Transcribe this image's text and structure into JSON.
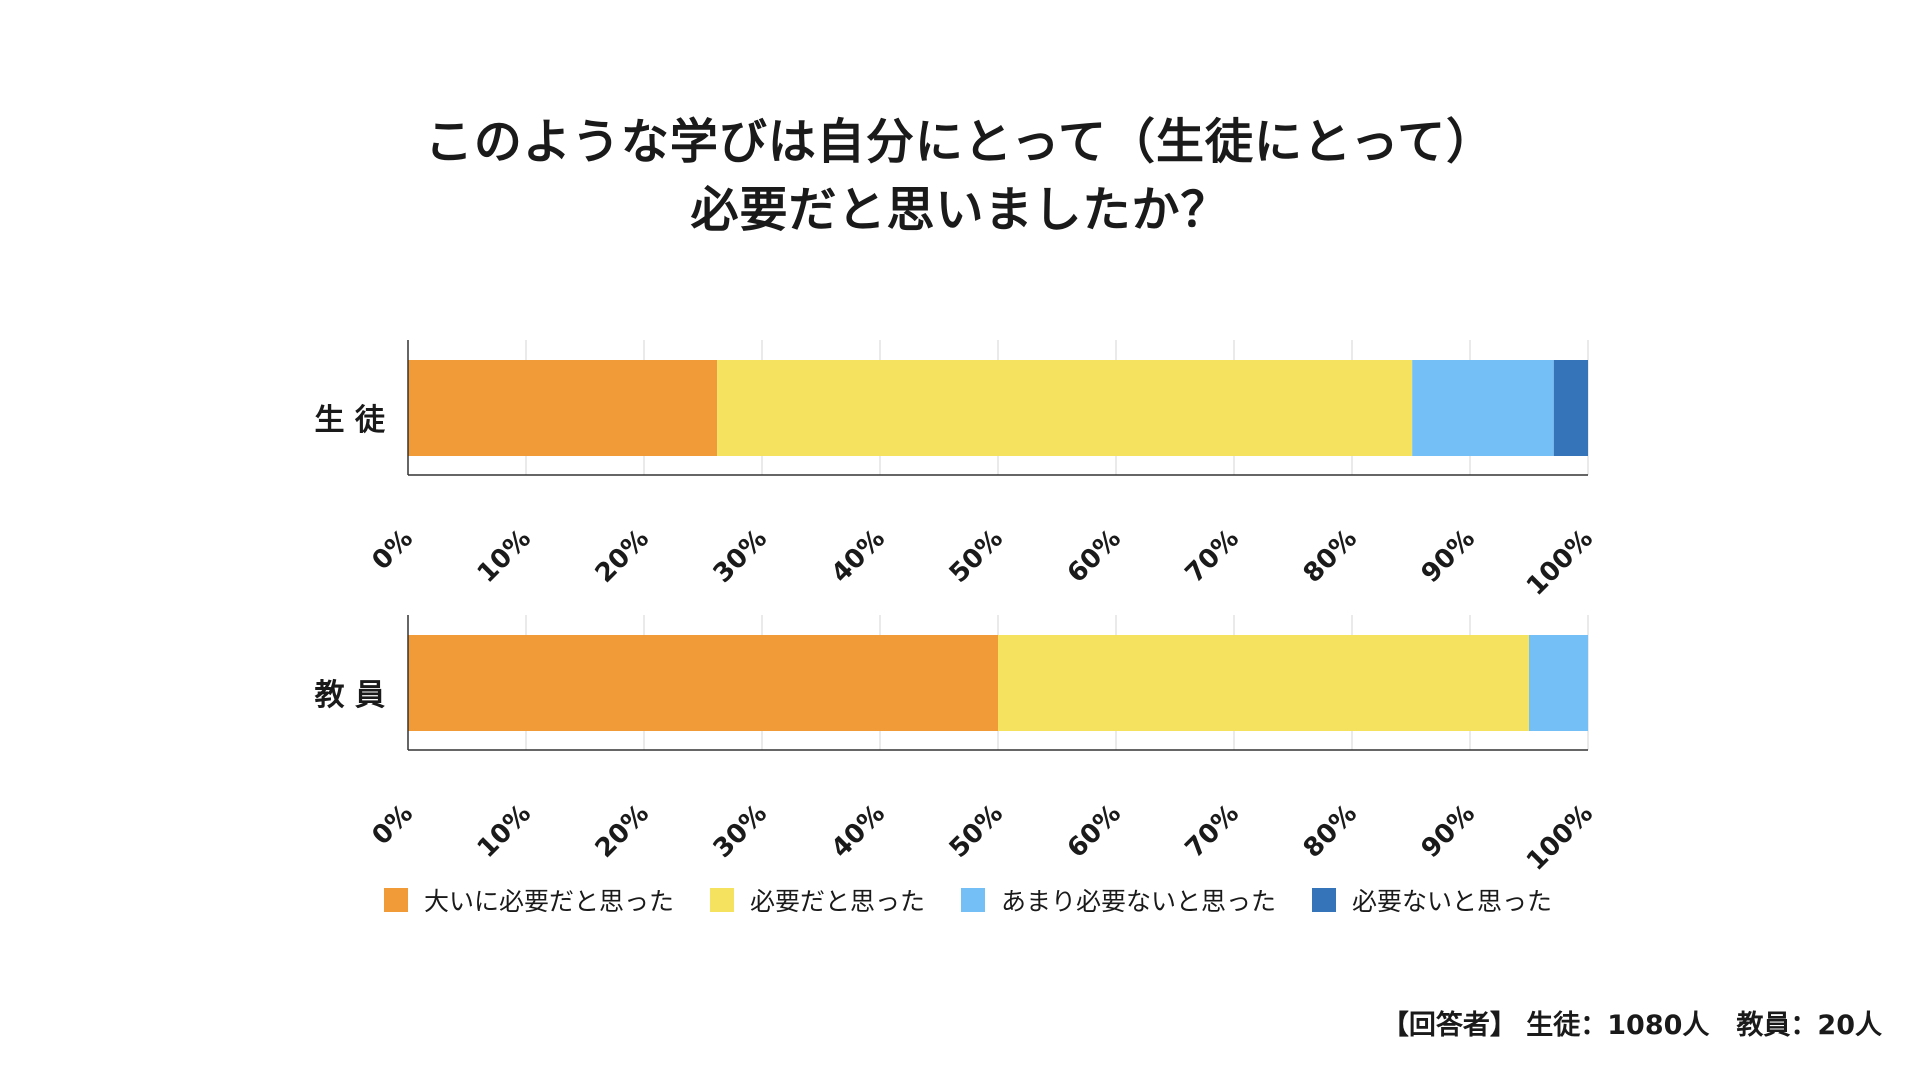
{
  "title_line1": "このような学びは自分にとって（生徒にとって）",
  "title_line2": "必要だと思いましたか？",
  "footnote": "【回答者】 生徒：1080人　教員：20人",
  "chart_data": {
    "type": "bar",
    "orientation": "horizontal",
    "stacked": true,
    "title": "このような学びは自分にとって（生徒にとって）必要だと思いましたか？",
    "categories": [
      "生 徒",
      "教 員"
    ],
    "xlim": [
      0,
      100
    ],
    "ticks": [
      "0%",
      "10%",
      "20%",
      "30%",
      "40%",
      "50%",
      "60%",
      "70%",
      "80%",
      "90%",
      "100%"
    ],
    "series": [
      {
        "name": "大いに必要だと思った",
        "color": "#F09A38",
        "values": [
          26.2,
          50.0
        ]
      },
      {
        "name": "必要だと思った",
        "color": "#F5E35F",
        "values": [
          58.9,
          45.0
        ]
      },
      {
        "name": "あまり必要ないと思った",
        "color": "#75BFF7",
        "values": [
          12.0,
          5.0
        ]
      },
      {
        "name": "必要ないと思った",
        "color": "#3574B8",
        "values": [
          2.9,
          0.0
        ]
      }
    ],
    "grid": true,
    "legend_position": "bottom"
  }
}
